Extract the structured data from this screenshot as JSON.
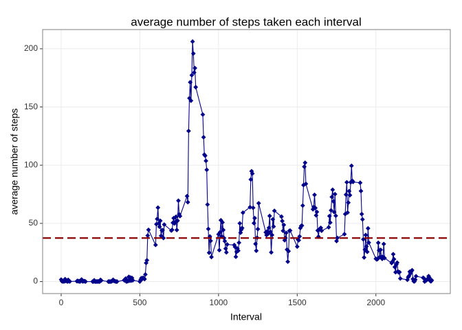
{
  "chart_data": {
    "type": "line",
    "title": "average number of steps taken each interval",
    "x_label": "Interval",
    "y_label": "average number of steps",
    "x": [
      0,
      5,
      10,
      15,
      20,
      25,
      30,
      35,
      40,
      45,
      50,
      55,
      100,
      105,
      110,
      115,
      120,
      125,
      130,
      135,
      140,
      145,
      150,
      155,
      200,
      205,
      210,
      215,
      220,
      225,
      230,
      235,
      240,
      245,
      250,
      255,
      300,
      305,
      310,
      315,
      320,
      325,
      330,
      335,
      340,
      345,
      350,
      355,
      400,
      405,
      410,
      415,
      420,
      425,
      430,
      435,
      440,
      445,
      450,
      455,
      500,
      505,
      510,
      515,
      520,
      525,
      530,
      535,
      540,
      545,
      550,
      555,
      600,
      605,
      610,
      615,
      620,
      625,
      630,
      635,
      640,
      645,
      650,
      655,
      700,
      705,
      710,
      715,
      720,
      725,
      730,
      735,
      740,
      745,
      750,
      755,
      800,
      805,
      810,
      815,
      820,
      825,
      830,
      835,
      840,
      845,
      850,
      855,
      900,
      905,
      910,
      915,
      920,
      925,
      930,
      935,
      940,
      945,
      950,
      955,
      1000,
      1005,
      1010,
      1015,
      1020,
      1025,
      1030,
      1035,
      1040,
      1045,
      1050,
      1055,
      1100,
      1105,
      1110,
      1115,
      1120,
      1125,
      1130,
      1135,
      1140,
      1145,
      1150,
      1155,
      1200,
      1205,
      1210,
      1215,
      1220,
      1225,
      1230,
      1235,
      1240,
      1245,
      1250,
      1255,
      1300,
      1305,
      1310,
      1315,
      1320,
      1325,
      1330,
      1335,
      1340,
      1345,
      1350,
      1355,
      1400,
      1405,
      1410,
      1415,
      1420,
      1425,
      1430,
      1435,
      1440,
      1445,
      1450,
      1455,
      1500,
      1505,
      1510,
      1515,
      1520,
      1525,
      1530,
      1535,
      1540,
      1545,
      1550,
      1555,
      1600,
      1605,
      1610,
      1615,
      1620,
      1625,
      1630,
      1635,
      1640,
      1645,
      1650,
      1655,
      1700,
      1705,
      1710,
      1715,
      1720,
      1725,
      1730,
      1735,
      1740,
      1745,
      1750,
      1755,
      1800,
      1805,
      1810,
      1815,
      1820,
      1825,
      1830,
      1835,
      1840,
      1845,
      1850,
      1855,
      1900,
      1905,
      1910,
      1915,
      1920,
      1925,
      1930,
      1935,
      1940,
      1945,
      1950,
      1955,
      2000,
      2005,
      2010,
      2015,
      2020,
      2025,
      2030,
      2035,
      2040,
      2045,
      2050,
      2055,
      2100,
      2105,
      2110,
      2115,
      2120,
      2125,
      2130,
      2135,
      2140,
      2145,
      2150,
      2155,
      2200,
      2205,
      2210,
      2215,
      2220,
      2225,
      2230,
      2235,
      2240,
      2245,
      2250,
      2255,
      2300,
      2305,
      2310,
      2315,
      2320,
      2325,
      2330,
      2335,
      2340,
      2345,
      2350,
      2355
    ],
    "series": [
      {
        "color": "#00008b",
        "values": [
          1.7,
          0.3,
          0.1,
          0.2,
          0.1,
          2.1,
          0.5,
          0.9,
          0,
          1.5,
          0.3,
          0.1,
          0.3,
          0.7,
          0.2,
          0.3,
          0,
          1.1,
          1.8,
          0.2,
          0.2,
          0.4,
          0.3,
          0,
          0,
          0,
          1.1,
          0,
          0,
          0.1,
          0,
          0.2,
          0,
          0,
          1.5,
          0.9,
          0,
          0,
          0,
          0,
          0.2,
          0.6,
          1.6,
          0.6,
          0.5,
          0.1,
          0,
          0,
          1.2,
          0.9,
          2.6,
          0,
          0.3,
          0.4,
          4.1,
          0.7,
          3.5,
          0.8,
          3.1,
          1.1,
          0,
          1.6,
          3.0,
          2.2,
          3.3,
          3.0,
          2.1,
          6.1,
          16.0,
          18.3,
          39.5,
          44.5,
          31.5,
          49.3,
          53.8,
          63.5,
          50.0,
          47.1,
          52.2,
          39.3,
          44.0,
          44.2,
          37.4,
          49.0,
          43.8,
          44.4,
          50.5,
          54.5,
          49.9,
          51.0,
          55.7,
          44.3,
          52.3,
          69.5,
          57.8,
          56.2,
          73.4,
          68.2,
          129.4,
          157.5,
          171.2,
          155.4,
          177.3,
          206.2,
          195.9,
          179.6,
          183.4,
          167.0,
          143.5,
          124.0,
          109.1,
          108.1,
          103.7,
          96.0,
          66.2,
          45.2,
          24.8,
          38.8,
          35.0,
          21.1,
          40.6,
          27.0,
          42.4,
          52.7,
          38.9,
          50.8,
          44.3,
          37.4,
          34.7,
          28.3,
          25.1,
          31.9,
          31.4,
          29.7,
          21.3,
          25.5,
          28.4,
          26.5,
          33.4,
          50.0,
          42.0,
          44.6,
          46.0,
          59.2,
          63.9,
          87.7,
          94.8,
          92.8,
          63.4,
          50.2,
          54.5,
          32.4,
          26.5,
          37.7,
          45.1,
          67.3,
          42.3,
          39.9,
          43.3,
          41.0,
          46.2,
          56.4,
          42.8,
          25.1,
          40.0,
          53.5,
          47.3,
          60.8,
          55.8,
          52.0,
          43.6,
          48.7,
          35.5,
          37.5,
          41.8,
          27.5,
          17.1,
          26.1,
          43.6,
          43.8,
          30.0,
          36.1,
          35.5,
          38.8,
          46.0,
          47.8,
          48.1,
          65.3,
          82.9,
          98.7,
          102.1,
          84.0,
          62.1,
          64.1,
          74.5,
          63.2,
          56.9,
          59.8,
          43.9,
          38.6,
          44.7,
          45.5,
          46.2,
          43.7,
          46.6,
          56.3,
          50.7,
          61.2,
          72.7,
          78.9,
          68.9,
          59.7,
          75.1,
          56.5,
          34.8,
          37.5,
          40.7,
          58.0,
          74.7,
          85.3,
          59.3,
          67.8,
          77.7,
          74.2,
          85.3,
          99.5,
          86.6,
          85.6,
          84.9,
          77.8,
          58.0,
          53.4,
          36.3,
          20.7,
          27.4,
          40.0,
          30.2,
          25.5,
          45.7,
          33.5,
          19.6,
          19.0,
          19.3,
          33.3,
          26.8,
          21.2,
          27.3,
          21.3,
          19.5,
          21.3,
          32.3,
          20.2,
          15.9,
          17.2,
          23.5,
          19.2,
          12.5,
          8.0,
          14.7,
          16.3,
          8.7,
          7.8,
          8.1,
          2.6,
          1.5,
          3.7,
          4.8,
          8.5,
          7.1,
          8.7,
          9.8,
          2.2,
          0.3,
          0.1,
          1.6,
          4.6,
          3.3,
          2.8,
          0,
          0.8,
          1.0,
          1.6,
          2.6,
          4.7,
          3.3,
          0.6,
          0.2,
          1.1
        ]
      }
    ],
    "reference_line": {
      "value": 37.38,
      "color": "#8b0000"
    },
    "xlim": [
      -117.75,
      2472.75
    ],
    "xticks": [
      0,
      500,
      1000,
      1500,
      2000
    ],
    "ylim": [
      -10.3,
      216.5
    ],
    "yticks": [
      0,
      50,
      100,
      150,
      200
    ],
    "grid": true
  }
}
